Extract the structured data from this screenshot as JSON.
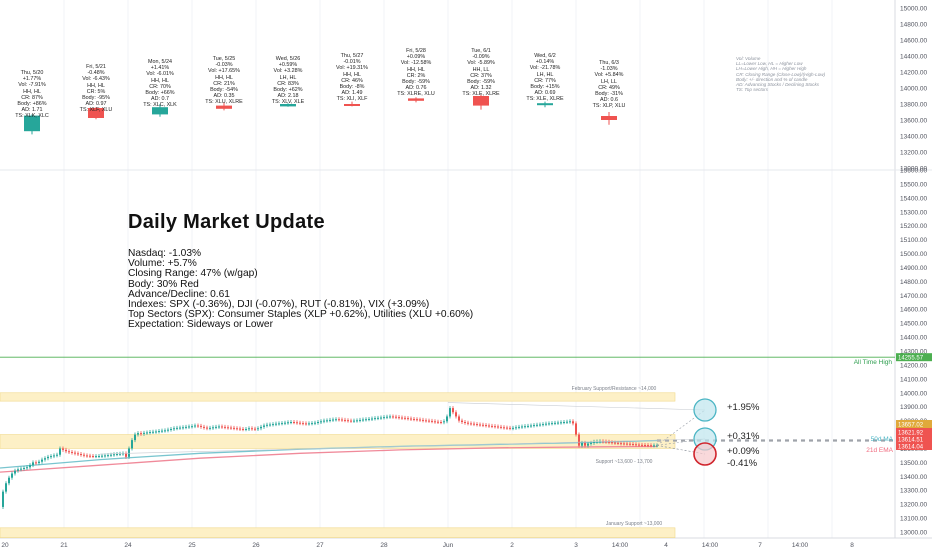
{
  "title": "Daily Market Update",
  "summary": [
    "Nasdaq: -1.03%",
    "Volume: +5.7%",
    "Closing Range: 47% (w/gap)",
    "Body: 30% Red",
    "Advance/Decline: 0.61",
    "Indexes: SPX (-0.36%), DJI (-0.07%), RUT (-0.81%), VIX (+3.09%)",
    "Top Sectors (SPX): Consumer Staples (XLP +0.62%), Utilities (XLU +0.60%)",
    "Expectation: Sideways or Lower"
  ],
  "legend": [
    "Vol: Volume",
    "LL=Lower Low, HL = Higher Low",
    "LH=Lower High, HH = Higher High",
    "CR: Closing Range (Close-Low)/(High-Low)",
    "Body: +/- direction and % of candle",
    "AD: Advancing Stocks / Declining Stocks",
    "TS: Top sectors"
  ],
  "days": [
    {
      "lines": [
        "Thu, 5/20",
        "+1.77%",
        "Vol: -7.91%",
        "HH, HL",
        "CR: 87%",
        "Body: +86%",
        "AD: 1.71",
        "TS: XLK, XLC"
      ],
      "candle": {
        "o": 13460,
        "h": 13670,
        "l": 13420,
        "c": 13655
      },
      "color": "#26a69a"
    },
    {
      "lines": [
        "Fri, 5/21",
        "-0.48%",
        "Vol: -6.43%",
        "HH, HL",
        "CR: 5%",
        "Body: -95%",
        "AD: 0.97",
        "TS: XLF, XLU"
      ],
      "candle": {
        "o": 13750,
        "h": 13760,
        "l": 13610,
        "c": 13625
      },
      "color": "#ef5350"
    },
    {
      "lines": [
        "Mon, 5/24",
        "+1.41%",
        "Vol: -6.01%",
        "HH, HL",
        "CR: 70%",
        "Body: +66%",
        "AD: 0.7",
        "TS: XLC, XLK"
      ],
      "candle": {
        "o": 13670,
        "h": 13800,
        "l": 13640,
        "c": 13760
      },
      "color": "#26a69a"
    },
    {
      "lines": [
        "Tue, 5/25",
        "-0.03%",
        "Vol: +17.65%",
        "HH, HL",
        "CR: 21%",
        "Body: -54%",
        "AD: 0.35",
        "TS: XLU, XLRE"
      ],
      "candle": {
        "o": 13780,
        "h": 13820,
        "l": 13720,
        "c": 13740
      },
      "color": "#ef5350"
    },
    {
      "lines": [
        "Wed, 5/26",
        "+0.59%",
        "Vol: +3.28%",
        "LH, HL",
        "CR: 83%",
        "Body: +62%",
        "AD: 2.18",
        "TS: XLV, XLE"
      ],
      "candle": {
        "o": 13770,
        "h": 13810,
        "l": 13765,
        "c": 13800
      },
      "color": "#26a69a"
    },
    {
      "lines": [
        "Thu, 5/27",
        "-0.01%",
        "Vol: +19.31%",
        "HH, HL",
        "CR: 46%",
        "Body: -8%",
        "AD: 1.49",
        "TS: XLI, XLF"
      ],
      "candle": {
        "o": 13800,
        "h": 13830,
        "l": 13770,
        "c": 13795
      },
      "color": "#ef5350"
    },
    {
      "lines": [
        "Fri, 5/28",
        "+0.09%",
        "Vol: -12.58%",
        "HH, HL",
        "CR: 2%",
        "Body: -59%",
        "AD: 0.76",
        "TS: XLRE, XLU"
      ],
      "candle": {
        "o": 13870,
        "h": 13885,
        "l": 13820,
        "c": 13840
      },
      "color": "#ef5350"
    },
    {
      "lines": [
        "Tue, 6/1",
        "-0.09%",
        "Vol: -5.89%",
        "HH, LL",
        "CR: 37%",
        "Body: -59%",
        "AD: 1.32",
        "TS: XLE, XLRE"
      ],
      "candle": {
        "o": 13900,
        "h": 13915,
        "l": 13730,
        "c": 13780
      },
      "color": "#ef5350"
    },
    {
      "lines": [
        "Wed, 6/2",
        "+0.14%",
        "Vol: -21.78%",
        "LH, HL",
        "CR: 77%",
        "Body: +15%",
        "AD: 0.69",
        "TS: XLE, XLRE"
      ],
      "candle": {
        "o": 13790,
        "h": 13830,
        "l": 13760,
        "c": 13810
      },
      "color": "#26a69a"
    },
    {
      "lines": [
        "Thu, 6/3",
        "-1.03%",
        "Vol: +5.84%",
        "LH, LL",
        "CR: 49%",
        "Body: -31%",
        "AD: 0.6",
        "TS: XLP, XLU"
      ],
      "candle": {
        "o": 13650,
        "h": 13700,
        "l": 13540,
        "c": 13600
      },
      "color": "#ef5350"
    }
  ],
  "top_axis": {
    "ticks": [
      "15000.00",
      "14800.00",
      "14600.00",
      "14400.00",
      "14200.00",
      "14000.00",
      "13800.00",
      "13600.00",
      "13400.00",
      "13200.00",
      "13000.00"
    ]
  },
  "chart_data": {
    "type": "line",
    "ylim": [
      13000,
      15600
    ],
    "y_ticks": [
      15600,
      15500,
      15400,
      15300,
      15200,
      15100,
      15000,
      14900,
      14800,
      14700,
      14600,
      14500,
      14400,
      14300,
      14200,
      14100,
      14000,
      13900,
      13800,
      13700,
      13600,
      13500,
      13400,
      13300,
      13200,
      13100,
      13000
    ],
    "x_ticks": [
      "20",
      "21",
      "24",
      "25",
      "26",
      "27",
      "28",
      "Jun",
      "2",
      "3",
      "14:00",
      "4",
      "14:00",
      "7",
      "14:00",
      "8"
    ],
    "all_time_high": {
      "label": "All Time High",
      "value": 14255.57,
      "value_label": "14255.57"
    },
    "zones": [
      {
        "label": "February Support/Resistance ~14,000",
        "from": 13940,
        "to": 14000
      },
      {
        "label": "Support ~13,600 - 13,700",
        "from": 13600,
        "to": 13700
      },
      {
        "label": "January Support ~13,000",
        "from": 12960,
        "to": 13030
      }
    ],
    "price_labels": [
      {
        "text": "13657.02",
        "value": 13657.02,
        "color": "#e0a93b"
      },
      {
        "text": "13621.92",
        "value": 13621.92,
        "color": "#ef5350"
      },
      {
        "text": "13614.51",
        "value": 13614.51,
        "color": "#ef5350"
      },
      {
        "text": "13614.04",
        "value": 13614.04,
        "color": "#ef5350"
      }
    ],
    "ma_labels": [
      {
        "text": "50d MA",
        "color": "#4bb5c4"
      },
      {
        "text": "21d EMA",
        "color": "#f06b7f"
      }
    ],
    "scenarios": [
      {
        "label": "+1.95%",
        "value": 13880,
        "color": "#4bb5c4"
      },
      {
        "label": "+0.31%",
        "value": 13660,
        "color": "#4bb5c4"
      },
      {
        "label": "+0.09%",
        "value": 13630,
        "color": "#222222"
      },
      {
        "label": "-0.41%",
        "value": 13560,
        "color": "#d0242c"
      }
    ],
    "price_series": [
      [
        0,
        13180
      ],
      [
        3,
        13290
      ],
      [
        6,
        13350
      ],
      [
        9,
        13390
      ],
      [
        12,
        13420
      ],
      [
        15,
        13440
      ],
      [
        18,
        13450
      ],
      [
        21,
        13455
      ],
      [
        24,
        13460
      ],
      [
        27,
        13465
      ],
      [
        30,
        13480
      ],
      [
        33,
        13500
      ],
      [
        36,
        13495
      ],
      [
        39,
        13505
      ],
      [
        42,
        13520
      ],
      [
        45,
        13530
      ],
      [
        48,
        13540
      ],
      [
        51,
        13545
      ],
      [
        54,
        13550
      ],
      [
        57,
        13555
      ],
      [
        60,
        13600
      ],
      [
        63,
        13590
      ],
      [
        66,
        13580
      ],
      [
        69,
        13575
      ],
      [
        72,
        13570
      ],
      [
        75,
        13565
      ],
      [
        78,
        13560
      ],
      [
        81,
        13555
      ],
      [
        84,
        13550
      ],
      [
        87,
        13548
      ],
      [
        90,
        13546
      ],
      [
        93,
        13545
      ],
      [
        96,
        13545
      ],
      [
        99,
        13546
      ],
      [
        102,
        13548
      ],
      [
        105,
        13550
      ],
      [
        108,
        13552
      ],
      [
        111,
        13555
      ],
      [
        114,
        13558
      ],
      [
        117,
        13560
      ],
      [
        120,
        13562
      ],
      [
        123,
        13565
      ],
      [
        126,
        13540
      ],
      [
        129,
        13600
      ],
      [
        132,
        13660
      ],
      [
        135,
        13700
      ],
      [
        138,
        13710
      ],
      [
        141,
        13705
      ],
      [
        144,
        13712
      ],
      [
        147,
        13715
      ],
      [
        150,
        13718
      ],
      [
        153,
        13720
      ],
      [
        156,
        13722
      ],
      [
        159,
        13725
      ],
      [
        162,
        13728
      ],
      [
        165,
        13730
      ],
      [
        168,
        13735
      ],
      [
        171,
        13740
      ],
      [
        174,
        13745
      ],
      [
        177,
        13748
      ],
      [
        180,
        13750
      ],
      [
        183,
        13752
      ],
      [
        186,
        13755
      ],
      [
        189,
        13758
      ],
      [
        192,
        13760
      ],
      [
        195,
        13765
      ],
      [
        198,
        13762
      ],
      [
        201,
        13755
      ],
      [
        204,
        13750
      ],
      [
        207,
        13745
      ],
      [
        210,
        13748
      ],
      [
        213,
        13752
      ],
      [
        216,
        13755
      ],
      [
        219,
        13758
      ],
      [
        222,
        13755
      ],
      [
        225,
        13752
      ],
      [
        228,
        13750
      ],
      [
        231,
        13748
      ],
      [
        234,
        13745
      ],
      [
        237,
        13743
      ],
      [
        240,
        13740
      ],
      [
        243,
        13738
      ],
      [
        246,
        13740
      ],
      [
        249,
        13745
      ],
      [
        252,
        13742
      ],
      [
        255,
        13740
      ],
      [
        258,
        13745
      ],
      [
        261,
        13755
      ],
      [
        264,
        13765
      ],
      [
        267,
        13770
      ],
      [
        270,
        13772
      ],
      [
        273,
        13775
      ],
      [
        276,
        13778
      ],
      [
        279,
        13780
      ],
      [
        282,
        13782
      ],
      [
        285,
        13785
      ],
      [
        288,
        13788
      ],
      [
        291,
        13790
      ],
      [
        294,
        13788
      ],
      [
        297,
        13785
      ],
      [
        300,
        13782
      ],
      [
        303,
        13780
      ],
      [
        306,
        13778
      ],
      [
        309,
        13780
      ],
      [
        312,
        13782
      ],
      [
        315,
        13785
      ],
      [
        318,
        13790
      ],
      [
        321,
        13795
      ],
      [
        324,
        13800
      ],
      [
        327,
        13802
      ],
      [
        330,
        13805
      ],
      [
        333,
        13808
      ],
      [
        336,
        13810
      ],
      [
        339,
        13808
      ],
      [
        342,
        13805
      ],
      [
        345,
        13803
      ],
      [
        348,
        13800
      ],
      [
        351,
        13798
      ],
      [
        354,
        13800
      ],
      [
        357,
        13802
      ],
      [
        360,
        13805
      ],
      [
        363,
        13808
      ],
      [
        366,
        13810
      ],
      [
        369,
        13812
      ],
      [
        372,
        13815
      ],
      [
        375,
        13818
      ],
      [
        378,
        13820
      ],
      [
        381,
        13822
      ],
      [
        384,
        13825
      ],
      [
        387,
        13828
      ],
      [
        390,
        13830
      ],
      [
        393,
        13828
      ],
      [
        396,
        13825
      ],
      [
        399,
        13822
      ],
      [
        402,
        13820
      ],
      [
        405,
        13818
      ],
      [
        408,
        13815
      ],
      [
        411,
        13812
      ],
      [
        414,
        13810
      ],
      [
        417,
        13808
      ],
      [
        420,
        13805
      ],
      [
        423,
        13802
      ],
      [
        426,
        13800
      ],
      [
        429,
        13798
      ],
      [
        432,
        13795
      ],
      [
        435,
        13792
      ],
      [
        438,
        13790
      ],
      [
        441,
        13788
      ],
      [
        444,
        13795
      ],
      [
        447,
        13830
      ],
      [
        450,
        13890
      ],
      [
        453,
        13860
      ],
      [
        456,
        13830
      ],
      [
        459,
        13800
      ],
      [
        462,
        13790
      ],
      [
        465,
        13785
      ],
      [
        468,
        13780
      ],
      [
        471,
        13778
      ],
      [
        474,
        13775
      ],
      [
        477,
        13772
      ],
      [
        480,
        13770
      ],
      [
        483,
        13768
      ],
      [
        486,
        13765
      ],
      [
        489,
        13762
      ],
      [
        492,
        13760
      ],
      [
        495,
        13758
      ],
      [
        498,
        13755
      ],
      [
        501,
        13752
      ],
      [
        504,
        13750
      ],
      [
        507,
        13748
      ],
      [
        510,
        13745
      ],
      [
        513,
        13748
      ],
      [
        516,
        13752
      ],
      [
        519,
        13755
      ],
      [
        522,
        13758
      ],
      [
        525,
        13760
      ],
      [
        528,
        13762
      ],
      [
        531,
        13765
      ],
      [
        534,
        13768
      ],
      [
        537,
        13770
      ],
      [
        540,
        13772
      ],
      [
        543,
        13775
      ],
      [
        546,
        13778
      ],
      [
        549,
        13780
      ],
      [
        552,
        13782
      ],
      [
        555,
        13784
      ],
      [
        558,
        13786
      ],
      [
        561,
        13788
      ],
      [
        564,
        13790
      ],
      [
        567,
        13792
      ],
      [
        570,
        13795
      ],
      [
        573,
        13780
      ],
      [
        576,
        13700
      ],
      [
        579,
        13620
      ],
      [
        582,
        13640
      ],
      [
        585,
        13620
      ],
      [
        588,
        13635
      ],
      [
        591,
        13640
      ],
      [
        594,
        13648
      ],
      [
        597,
        13650
      ],
      [
        600,
        13652
      ],
      [
        603,
        13650
      ],
      [
        606,
        13648
      ],
      [
        609,
        13645
      ],
      [
        612,
        13642
      ],
      [
        615,
        13640
      ],
      [
        618,
        13638
      ],
      [
        621,
        13636
      ],
      [
        624,
        13635
      ],
      [
        627,
        13634
      ],
      [
        630,
        13632
      ],
      [
        633,
        13630
      ],
      [
        636,
        13628
      ],
      [
        639,
        13626
      ],
      [
        642,
        13625
      ],
      [
        645,
        13624
      ],
      [
        648,
        13623
      ],
      [
        651,
        13622
      ],
      [
        654,
        13622
      ],
      [
        657,
        13622
      ]
    ],
    "ma50": [
      [
        0,
        13460
      ],
      [
        100,
        13520
      ],
      [
        200,
        13565
      ],
      [
        300,
        13595
      ],
      [
        400,
        13615
      ],
      [
        500,
        13630
      ],
      [
        600,
        13645
      ],
      [
        657,
        13657
      ]
    ],
    "ema21": [
      [
        0,
        13430
      ],
      [
        100,
        13480
      ],
      [
        200,
        13530
      ],
      [
        300,
        13565
      ],
      [
        400,
        13590
      ],
      [
        500,
        13605
      ],
      [
        600,
        13612
      ],
      [
        657,
        13614
      ]
    ]
  }
}
